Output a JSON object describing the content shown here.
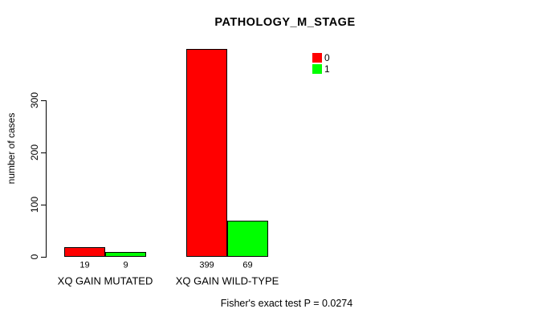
{
  "chart_data": {
    "type": "bar",
    "title": "PATHOLOGY_M_STAGE",
    "ylabel": "number of cases",
    "xlabel": "",
    "categories": [
      "XQ GAIN MUTATED",
      "XQ GAIN WILD-TYPE"
    ],
    "series": [
      {
        "name": "0",
        "color": "#ff0000",
        "values": [
          19,
          399
        ]
      },
      {
        "name": "1",
        "color": "#00ff00",
        "values": [
          9,
          69
        ]
      }
    ],
    "yticks": [
      0,
      100,
      200,
      300
    ],
    "ylim": [
      0,
      399
    ],
    "grid": false,
    "legend_position": "top-right",
    "legend_entries": [
      "0",
      "1"
    ],
    "annotation": "Fisher's exact test P = 0.0274"
  }
}
